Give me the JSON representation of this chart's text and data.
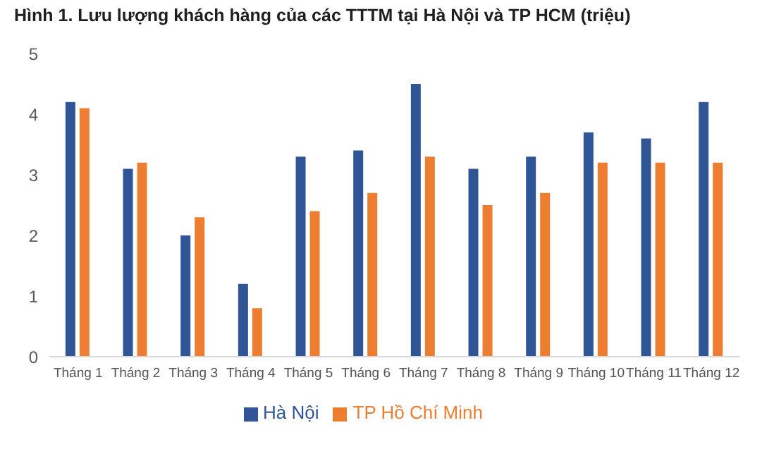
{
  "chart_data": {
    "type": "bar",
    "title": "Hình 1. Lưu lượng khách hàng của các TTTM tại Hà Nội và TP HCM (triệu)",
    "categories": [
      "Tháng 1",
      "Tháng 2",
      "Tháng 3",
      "Tháng 4",
      "Tháng 5",
      "Tháng 6",
      "Tháng 7",
      "Tháng 8",
      "Tháng 9",
      "Tháng 10",
      "Tháng 11",
      "Tháng 12"
    ],
    "series": [
      {
        "name": "Hà Nội",
        "color": "#2f5597",
        "values": [
          4.2,
          3.1,
          2.0,
          1.2,
          3.3,
          3.4,
          4.5,
          3.1,
          3.3,
          3.7,
          3.6,
          4.2
        ]
      },
      {
        "name": "TP Hồ Chí Minh",
        "color": "#ed7d31",
        "values": [
          4.1,
          3.2,
          2.3,
          0.8,
          2.4,
          2.7,
          3.3,
          2.5,
          2.7,
          3.2,
          3.2,
          3.2
        ]
      }
    ],
    "ylim": [
      0,
      5
    ],
    "yticks": [
      0,
      1,
      2,
      3,
      4,
      5
    ],
    "grid": false,
    "legend": "bottom"
  }
}
